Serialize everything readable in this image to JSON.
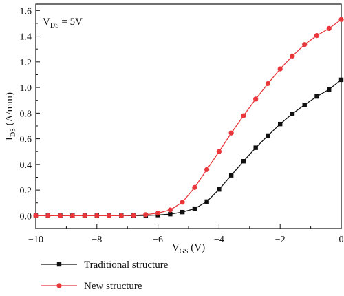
{
  "chart_data": {
    "type": "line",
    "annotation": {
      "main": "V",
      "sub": "DS",
      "rest": " = 5V"
    },
    "xlabel": {
      "main": "V",
      "sub": "GS",
      "rest": " (V)"
    },
    "ylabel": {
      "main": "I",
      "sub": "DS",
      "rest": " (A/mm)"
    },
    "xlim": [
      -10,
      0
    ],
    "ylim": [
      -0.1,
      1.65
    ],
    "x_ticks": [
      -10,
      -8,
      -6,
      -4,
      -2,
      0
    ],
    "x_tick_labels": [
      "−10",
      "−8",
      "−6",
      "−4",
      "−2",
      "0"
    ],
    "y_ticks": [
      0.0,
      0.2,
      0.4,
      0.6,
      0.8,
      1.0,
      1.2,
      1.4,
      1.6
    ],
    "y_tick_labels": [
      "0.0",
      "0.2",
      "0.4",
      "0.6",
      "0.8",
      "1.0",
      "1.2",
      "1.4",
      "1.6"
    ],
    "grid": false,
    "legend_position": "below",
    "series": [
      {
        "name": "Traditional structure",
        "color": "#111111",
        "marker": "square",
        "x": [
          -10,
          -9.6,
          -9.2,
          -8.8,
          -8.4,
          -8.0,
          -7.6,
          -7.2,
          -6.8,
          -6.4,
          -6.0,
          -5.6,
          -5.2,
          -4.8,
          -4.4,
          -4.0,
          -3.6,
          -3.2,
          -2.8,
          -2.4,
          -2.0,
          -1.6,
          -1.2,
          -0.8,
          -0.4,
          0.0
        ],
        "values": [
          0,
          0,
          0,
          0,
          0,
          0,
          0,
          0,
          0,
          0.002,
          0.005,
          0.012,
          0.028,
          0.055,
          0.11,
          0.205,
          0.315,
          0.425,
          0.53,
          0.625,
          0.715,
          0.795,
          0.865,
          0.93,
          0.985,
          1.06
        ]
      },
      {
        "name": "New structure",
        "color": "#e8363b",
        "marker": "circle",
        "x": [
          -10,
          -9.6,
          -9.2,
          -8.8,
          -8.4,
          -8.0,
          -7.6,
          -7.2,
          -6.8,
          -6.4,
          -6.0,
          -5.6,
          -5.2,
          -4.8,
          -4.4,
          -4.0,
          -3.6,
          -3.2,
          -2.8,
          -2.4,
          -2.0,
          -1.6,
          -1.2,
          -0.8,
          -0.4,
          0.0
        ],
        "values": [
          0,
          0,
          0,
          0,
          0,
          0,
          0,
          0,
          0.002,
          0.008,
          0.02,
          0.045,
          0.105,
          0.22,
          0.36,
          0.5,
          0.645,
          0.78,
          0.91,
          1.03,
          1.145,
          1.245,
          1.335,
          1.405,
          1.46,
          1.53
        ]
      }
    ]
  }
}
